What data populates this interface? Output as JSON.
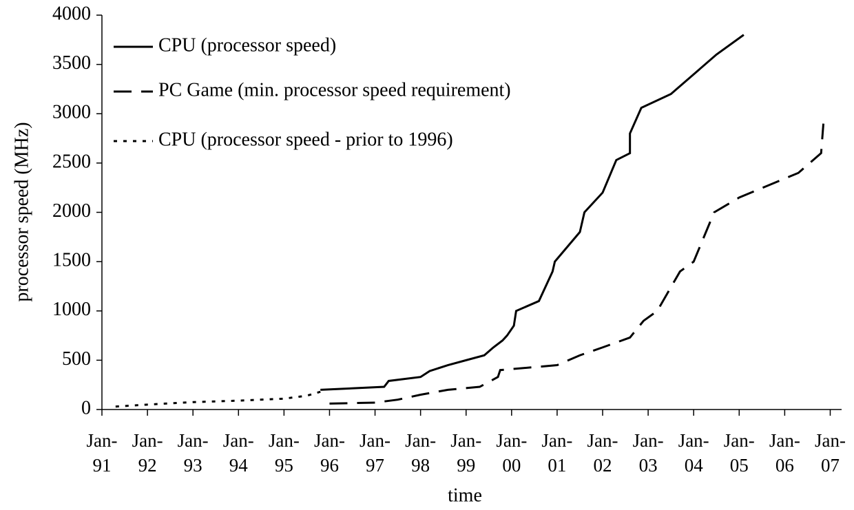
{
  "chart_data": {
    "type": "line",
    "xlabel": "time",
    "ylabel": "processor speed (MHz)",
    "xlim": [
      1991,
      2007.25
    ],
    "ylim": [
      0,
      4000
    ],
    "yticks": [
      0,
      500,
      1000,
      1500,
      2000,
      2500,
      3000,
      3500,
      4000
    ],
    "xticks": [
      {
        "value": 1991,
        "label": "Jan-91"
      },
      {
        "value": 1992,
        "label": "Jan-92"
      },
      {
        "value": 1993,
        "label": "Jan-93"
      },
      {
        "value": 1994,
        "label": "Jan-94"
      },
      {
        "value": 1995,
        "label": "Jan-95"
      },
      {
        "value": 1996,
        "label": "Jan-96"
      },
      {
        "value": 1997,
        "label": "Jan-97"
      },
      {
        "value": 1998,
        "label": "Jan-98"
      },
      {
        "value": 1999,
        "label": "Jan-99"
      },
      {
        "value": 2000,
        "label": "Jan-00"
      },
      {
        "value": 2001,
        "label": "Jan-01"
      },
      {
        "value": 2002,
        "label": "Jan-02"
      },
      {
        "value": 2003,
        "label": "Jan-03"
      },
      {
        "value": 2004,
        "label": "Jan-04"
      },
      {
        "value": 2005,
        "label": "Jan-05"
      },
      {
        "value": 2006,
        "label": "Jan-06"
      },
      {
        "value": 2007,
        "label": "Jan-07"
      }
    ],
    "grid": false,
    "legend": "upper left",
    "series": [
      {
        "name": "CPU (processor speed)",
        "color": "#000000",
        "style": "solid",
        "x": [
          1995.8,
          1997.2,
          1997.3,
          1998.0,
          1998.2,
          1998.6,
          1999.0,
          1999.4,
          1999.6,
          1999.8,
          1999.9,
          2000.05,
          2000.1,
          2000.6,
          2000.9,
          2000.95,
          2001.5,
          2001.6,
          2002.0,
          2002.3,
          2002.6,
          2002.6,
          2002.85,
          2003.5,
          2004.0,
          2004.5,
          2005.1
        ],
        "values": [
          200,
          230,
          290,
          330,
          390,
          450,
          500,
          550,
          630,
          700,
          750,
          850,
          1000,
          1100,
          1400,
          1500,
          1800,
          2000,
          2200,
          2530,
          2600,
          2800,
          3060,
          3200,
          3400,
          3600,
          3800
        ]
      },
      {
        "name": "PC Game (min. processor speed requirement)",
        "color": "#000000",
        "style": "dashed",
        "x": [
          1996.0,
          1997.0,
          1997.5,
          1998.0,
          1998.6,
          1999.3,
          1999.7,
          1999.75,
          2000.0,
          2001.0,
          2001.5,
          2002.0,
          2002.6,
          2002.9,
          2003.2,
          2003.7,
          2004.0,
          2004.45,
          2005.0,
          2006.3,
          2006.8,
          2006.85
        ],
        "values": [
          60,
          70,
          100,
          150,
          200,
          230,
          330,
          400,
          410,
          450,
          550,
          630,
          730,
          900,
          1000,
          1400,
          1500,
          2000,
          2150,
          2400,
          2600,
          2900
        ]
      },
      {
        "name": "CPU (processor speed - prior to 1996)",
        "color": "#000000",
        "style": "dotted",
        "x": [
          1991.3,
          1992.0,
          1993.0,
          1994.0,
          1995.0,
          1995.5,
          1995.8
        ],
        "values": [
          30,
          50,
          75,
          90,
          110,
          140,
          180
        ]
      }
    ]
  }
}
